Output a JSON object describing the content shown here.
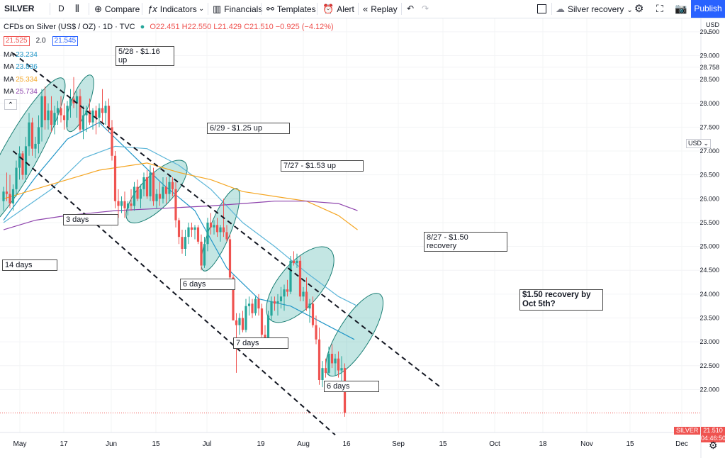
{
  "toolbar": {
    "symbol": "SILVER",
    "interval": "D",
    "compare": "Compare",
    "indicators": "Indicators",
    "financials": "Financials",
    "templates": "Templates",
    "alert": "Alert",
    "replay": "Replay",
    "layout_name": "Silver recovery",
    "publish": "Publish"
  },
  "legend": {
    "title": "CFDs on Silver (US$ / OZ) · 1D · TVC",
    "ohlc": "O22.451 H22.550 L21.429 C21.510 −0.925 (−4.12%)",
    "bid": "21.525",
    "spread": "2.0",
    "ask": "21.545",
    "ma": [
      {
        "label": "MA",
        "value": "23.234",
        "color": "#2196c8"
      },
      {
        "label": "MA",
        "value": "23.836",
        "color": "#2196c8"
      },
      {
        "label": "MA",
        "value": "25.334",
        "color": "#f5a623"
      },
      {
        "label": "MA",
        "value": "25.734",
        "color": "#8e44ad"
      }
    ],
    "collapse": "⌃"
  },
  "currency": "USD",
  "axis_unit_label": "USD",
  "price_tag": {
    "symbol": "SILVER",
    "price": "21.510",
    "countdown": "04:46:50"
  },
  "annotations": [
    {
      "text": "5/28 - $1.16\nup"
    },
    {
      "text": "6/29 - $1.25 up"
    },
    {
      "text": "7/27 - $1.53 up"
    },
    {
      "text": "8/27 - $1.50\nrecovery"
    },
    {
      "text": "$1.50 recovery by\nOct 5th?"
    },
    {
      "text": "3 days"
    },
    {
      "text": "14 days"
    },
    {
      "text": "6 days"
    },
    {
      "text": "7 days"
    },
    {
      "text": "6 days"
    }
  ],
  "chart_data": {
    "type": "candlestick",
    "x_ticks": [
      "May",
      "17",
      "Jun",
      "15",
      "Jul",
      "19",
      "Aug",
      "16",
      "Sep",
      "15",
      "Oct",
      "18",
      "Nov",
      "15",
      "Dec"
    ],
    "y_ticks": [
      "29.500",
      "29.000",
      "28.758",
      "28.500",
      "28.000",
      "27.500",
      "27.000",
      "26.500",
      "26.000",
      "25.500",
      "25.000",
      "24.500",
      "24.000",
      "23.500",
      "23.000",
      "22.500",
      "22.000"
    ],
    "ylim": [
      21.1,
      29.78
    ],
    "candles": [
      {
        "o": 25.95,
        "h": 26.25,
        "l": 25.75,
        "c": 26.15
      },
      {
        "o": 26.15,
        "h": 26.55,
        "l": 25.95,
        "c": 26.1
      },
      {
        "o": 26.1,
        "h": 26.5,
        "l": 25.8,
        "c": 25.9
      },
      {
        "o": 25.9,
        "h": 26.3,
        "l": 25.75,
        "c": 26.2
      },
      {
        "o": 26.2,
        "h": 26.8,
        "l": 26.05,
        "c": 26.65
      },
      {
        "o": 26.65,
        "h": 27.1,
        "l": 26.4,
        "c": 26.95
      },
      {
        "o": 26.95,
        "h": 27.0,
        "l": 26.4,
        "c": 26.5
      },
      {
        "o": 26.5,
        "h": 27.3,
        "l": 26.35,
        "c": 27.1
      },
      {
        "o": 27.1,
        "h": 27.8,
        "l": 26.9,
        "c": 27.6
      },
      {
        "o": 27.6,
        "h": 27.7,
        "l": 26.9,
        "c": 27.05
      },
      {
        "o": 27.05,
        "h": 27.3,
        "l": 26.85,
        "c": 27.15
      },
      {
        "o": 27.15,
        "h": 27.75,
        "l": 26.95,
        "c": 27.5
      },
      {
        "o": 27.5,
        "h": 28.3,
        "l": 27.2,
        "c": 28.15
      },
      {
        "o": 28.15,
        "h": 28.35,
        "l": 27.45,
        "c": 27.65
      },
      {
        "o": 27.65,
        "h": 28.0,
        "l": 27.45,
        "c": 27.85
      },
      {
        "o": 27.85,
        "h": 28.15,
        "l": 27.4,
        "c": 27.55
      },
      {
        "o": 27.55,
        "h": 27.95,
        "l": 27.35,
        "c": 27.8
      },
      {
        "o": 27.8,
        "h": 28.05,
        "l": 27.55,
        "c": 27.9
      },
      {
        "o": 27.9,
        "h": 28.15,
        "l": 27.6,
        "c": 27.75
      },
      {
        "o": 27.75,
        "h": 28.0,
        "l": 27.45,
        "c": 27.65
      },
      {
        "o": 27.65,
        "h": 28.05,
        "l": 27.5,
        "c": 27.95
      },
      {
        "o": 27.95,
        "h": 28.3,
        "l": 27.7,
        "c": 28.1
      },
      {
        "o": 28.1,
        "h": 28.55,
        "l": 27.9,
        "c": 28.0
      },
      {
        "o": 28.0,
        "h": 28.25,
        "l": 27.7,
        "c": 28.15
      },
      {
        "o": 28.15,
        "h": 28.3,
        "l": 27.4,
        "c": 27.45
      },
      {
        "o": 27.45,
        "h": 27.95,
        "l": 27.25,
        "c": 27.75
      },
      {
        "o": 27.75,
        "h": 27.95,
        "l": 27.4,
        "c": 27.85
      },
      {
        "o": 27.85,
        "h": 28.1,
        "l": 27.55,
        "c": 27.6
      },
      {
        "o": 27.6,
        "h": 27.9,
        "l": 27.45,
        "c": 27.85
      },
      {
        "o": 27.85,
        "h": 27.95,
        "l": 27.35,
        "c": 27.7
      },
      {
        "o": 27.7,
        "h": 28.0,
        "l": 27.5,
        "c": 27.9
      },
      {
        "o": 27.9,
        "h": 28.3,
        "l": 27.6,
        "c": 27.8
      },
      {
        "o": 27.8,
        "h": 28.05,
        "l": 27.55,
        "c": 27.95
      },
      {
        "o": 27.95,
        "h": 28.1,
        "l": 27.4,
        "c": 27.5
      },
      {
        "o": 27.5,
        "h": 27.65,
        "l": 26.8,
        "c": 26.9
      },
      {
        "o": 26.9,
        "h": 27.0,
        "l": 25.8,
        "c": 25.95
      },
      {
        "o": 25.95,
        "h": 26.2,
        "l": 25.6,
        "c": 25.85
      },
      {
        "o": 25.85,
        "h": 26.05,
        "l": 25.7,
        "c": 25.95
      },
      {
        "o": 25.95,
        "h": 26.15,
        "l": 25.6,
        "c": 25.8
      },
      {
        "o": 25.8,
        "h": 25.95,
        "l": 25.65,
        "c": 25.9
      },
      {
        "o": 25.9,
        "h": 26.2,
        "l": 25.75,
        "c": 25.85
      },
      {
        "o": 25.85,
        "h": 26.35,
        "l": 25.75,
        "c": 26.25
      },
      {
        "o": 26.25,
        "h": 26.4,
        "l": 25.95,
        "c": 26.0
      },
      {
        "o": 26.0,
        "h": 26.3,
        "l": 25.8,
        "c": 26.2
      },
      {
        "o": 26.2,
        "h": 26.55,
        "l": 26.05,
        "c": 26.45
      },
      {
        "o": 26.45,
        "h": 26.6,
        "l": 26.0,
        "c": 26.05
      },
      {
        "o": 26.05,
        "h": 26.7,
        "l": 25.95,
        "c": 26.55
      },
      {
        "o": 26.55,
        "h": 26.65,
        "l": 25.85,
        "c": 25.95
      },
      {
        "o": 25.95,
        "h": 26.2,
        "l": 25.8,
        "c": 26.1
      },
      {
        "o": 26.1,
        "h": 26.35,
        "l": 25.85,
        "c": 26.0
      },
      {
        "o": 26.0,
        "h": 26.45,
        "l": 25.9,
        "c": 26.25
      },
      {
        "o": 26.25,
        "h": 26.45,
        "l": 25.9,
        "c": 26.1
      },
      {
        "o": 26.1,
        "h": 26.5,
        "l": 25.95,
        "c": 26.35
      },
      {
        "o": 26.35,
        "h": 26.45,
        "l": 26.05,
        "c": 26.2
      },
      {
        "o": 26.2,
        "h": 26.35,
        "l": 25.4,
        "c": 25.55
      },
      {
        "o": 25.55,
        "h": 25.6,
        "l": 25.05,
        "c": 25.2
      },
      {
        "o": 25.2,
        "h": 25.35,
        "l": 24.85,
        "c": 24.95
      },
      {
        "o": 24.95,
        "h": 25.35,
        "l": 24.8,
        "c": 25.2
      },
      {
        "o": 25.2,
        "h": 25.5,
        "l": 25.05,
        "c": 25.4
      },
      {
        "o": 25.4,
        "h": 25.5,
        "l": 25.2,
        "c": 25.35
      },
      {
        "o": 25.35,
        "h": 25.45,
        "l": 25.15,
        "c": 25.4
      },
      {
        "o": 25.4,
        "h": 25.45,
        "l": 25.05,
        "c": 25.1
      },
      {
        "o": 25.1,
        "h": 25.25,
        "l": 24.5,
        "c": 24.6
      },
      {
        "o": 24.6,
        "h": 25.2,
        "l": 24.55,
        "c": 25.05
      },
      {
        "o": 25.05,
        "h": 25.6,
        "l": 24.9,
        "c": 25.5
      },
      {
        "o": 25.5,
        "h": 25.7,
        "l": 25.25,
        "c": 25.4
      },
      {
        "o": 25.4,
        "h": 25.55,
        "l": 25.25,
        "c": 25.45
      },
      {
        "o": 25.45,
        "h": 25.6,
        "l": 25.2,
        "c": 25.3
      },
      {
        "o": 25.3,
        "h": 25.45,
        "l": 25.1,
        "c": 25.4
      },
      {
        "o": 25.4,
        "h": 26.0,
        "l": 25.2,
        "c": 25.3
      },
      {
        "o": 25.3,
        "h": 25.45,
        "l": 25.1,
        "c": 25.15
      },
      {
        "o": 25.15,
        "h": 25.25,
        "l": 24.3,
        "c": 24.35
      },
      {
        "o": 24.35,
        "h": 24.4,
        "l": 23.45,
        "c": 23.45
      },
      {
        "o": 23.45,
        "h": 23.6,
        "l": 22.35,
        "c": 23.35
      },
      {
        "o": 23.35,
        "h": 23.6,
        "l": 23.15,
        "c": 23.5
      },
      {
        "o": 23.5,
        "h": 23.65,
        "l": 23.2,
        "c": 23.25
      },
      {
        "o": 23.25,
        "h": 23.9,
        "l": 23.2,
        "c": 23.75
      },
      {
        "o": 23.75,
        "h": 23.95,
        "l": 23.55,
        "c": 23.8
      },
      {
        "o": 23.8,
        "h": 23.9,
        "l": 23.5,
        "c": 23.6
      },
      {
        "o": 23.6,
        "h": 23.95,
        "l": 23.55,
        "c": 23.9
      },
      {
        "o": 23.9,
        "h": 24.0,
        "l": 23.55,
        "c": 23.7
      },
      {
        "o": 23.7,
        "h": 23.8,
        "l": 23.1,
        "c": 23.15
      },
      {
        "o": 23.15,
        "h": 23.35,
        "l": 22.9,
        "c": 23.0
      },
      {
        "o": 23.0,
        "h": 23.65,
        "l": 22.9,
        "c": 23.55
      },
      {
        "o": 23.55,
        "h": 23.95,
        "l": 23.45,
        "c": 23.85
      },
      {
        "o": 23.85,
        "h": 23.95,
        "l": 23.65,
        "c": 23.8
      },
      {
        "o": 23.8,
        "h": 24.0,
        "l": 23.55,
        "c": 23.85
      },
      {
        "o": 23.85,
        "h": 24.15,
        "l": 23.7,
        "c": 23.95
      },
      {
        "o": 23.95,
        "h": 24.2,
        "l": 23.65,
        "c": 24.1
      },
      {
        "o": 24.1,
        "h": 24.3,
        "l": 23.95,
        "c": 24.05
      },
      {
        "o": 24.05,
        "h": 24.8,
        "l": 24.0,
        "c": 24.7
      },
      {
        "o": 24.7,
        "h": 24.9,
        "l": 24.6,
        "c": 24.65
      },
      {
        "o": 24.65,
        "h": 24.85,
        "l": 24.55,
        "c": 24.7
      },
      {
        "o": 24.7,
        "h": 24.8,
        "l": 23.85,
        "c": 23.95
      },
      {
        "o": 23.95,
        "h": 24.15,
        "l": 23.85,
        "c": 24.05
      },
      {
        "o": 24.05,
        "h": 24.35,
        "l": 23.65,
        "c": 23.7
      },
      {
        "o": 23.7,
        "h": 23.9,
        "l": 23.4,
        "c": 23.8
      },
      {
        "o": 23.8,
        "h": 23.95,
        "l": 23.3,
        "c": 23.35
      },
      {
        "o": 23.35,
        "h": 23.55,
        "l": 22.95,
        "c": 23.05
      },
      {
        "o": 23.05,
        "h": 23.3,
        "l": 22.1,
        "c": 22.2
      },
      {
        "o": 22.2,
        "h": 22.6,
        "l": 22.05,
        "c": 22.45
      },
      {
        "o": 22.45,
        "h": 22.65,
        "l": 22.25,
        "c": 22.35
      },
      {
        "o": 22.35,
        "h": 22.9,
        "l": 22.3,
        "c": 22.75
      },
      {
        "o": 22.75,
        "h": 22.95,
        "l": 22.45,
        "c": 22.55
      },
      {
        "o": 22.55,
        "h": 22.75,
        "l": 22.3,
        "c": 22.65
      },
      {
        "o": 22.65,
        "h": 22.8,
        "l": 22.25,
        "c": 22.4
      },
      {
        "o": 22.4,
        "h": 22.7,
        "l": 22.1,
        "c": 22.45
      },
      {
        "o": 22.451,
        "h": 22.55,
        "l": 21.429,
        "c": 21.51
      }
    ],
    "moving_averages": [
      {
        "name": "MA",
        "color": "#2196c8",
        "x": [
          0,
          10,
          20,
          30,
          40,
          50,
          60,
          70,
          80,
          90,
          100,
          110
        ],
        "y": [
          25.55,
          26.45,
          27.25,
          27.6,
          26.95,
          26.3,
          25.75,
          24.55,
          23.9,
          23.75,
          23.4,
          23.05
        ]
      },
      {
        "name": "MA",
        "color": "#5bb5d8",
        "x": [
          0,
          15,
          25,
          35,
          45,
          55,
          65,
          75,
          85,
          95,
          105,
          111
        ],
        "y": [
          25.5,
          26.2,
          26.85,
          27.1,
          27.05,
          26.7,
          26.2,
          25.5,
          25.0,
          24.45,
          23.95,
          23.75
        ]
      },
      {
        "name": "MA",
        "color": "#f5a623",
        "x": [
          0,
          15,
          30,
          45,
          55,
          65,
          75,
          85,
          95,
          105,
          111
        ],
        "y": [
          26.0,
          26.3,
          26.6,
          26.75,
          26.55,
          26.4,
          26.15,
          26.05,
          25.95,
          25.65,
          25.35
        ]
      },
      {
        "name": "MA",
        "color": "#8e44ad",
        "x": [
          0,
          10,
          20,
          35,
          50,
          65,
          75,
          85,
          95,
          105,
          111
        ],
        "y": [
          25.35,
          25.55,
          25.65,
          25.75,
          25.8,
          25.85,
          25.9,
          25.95,
          25.95,
          25.9,
          25.75
        ]
      }
    ],
    "trendlines": [
      {
        "x": [
          3,
          137
        ],
        "y": [
          29.05,
          22.05
        ]
      },
      {
        "x": [
          3,
          104
        ],
        "y": [
          27.0,
          21.05
        ]
      }
    ],
    "highlight_ellipses": [
      {
        "x": 5,
        "y": 26.9,
        "len": 250,
        "width": 50,
        "angle": -61
      },
      {
        "x": 24,
        "y": 28.0,
        "len": 85,
        "width": 25,
        "angle": -69
      },
      {
        "x": 48,
        "y": 26.15,
        "len": 115,
        "width": 45,
        "angle": -46
      },
      {
        "x": 68,
        "y": 25.35,
        "len": 125,
        "width": 30,
        "angle": -68
      },
      {
        "x": 93,
        "y": 24.2,
        "len": 130,
        "width": 60,
        "angle": -50
      },
      {
        "x": 110,
        "y": 23.15,
        "len": 135,
        "width": 45,
        "angle": -58
      }
    ],
    "last_price": 21.51,
    "xlabel": "",
    "ylabel": ""
  }
}
